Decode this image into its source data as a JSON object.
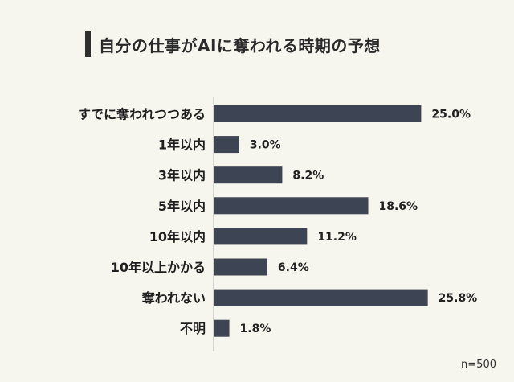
{
  "chart_data": {
    "type": "bar",
    "orientation": "horizontal",
    "title": "自分の仕事がAIに奪われる時期の予想",
    "categories": [
      "すでに奪われつつある",
      "1年以内",
      "3年以内",
      "5年以内",
      "10年以内",
      "10年以上かかる",
      "奪われない",
      "不明"
    ],
    "values": [
      25.0,
      3.0,
      8.2,
      18.6,
      11.2,
      6.4,
      25.8,
      1.8
    ],
    "value_labels": [
      "25.0%",
      "3.0%",
      "8.2%",
      "18.6%",
      "11.2%",
      "6.4%",
      "25.8%",
      "1.8%"
    ],
    "xlim": [
      0,
      27
    ],
    "grid": false,
    "legend": "none",
    "note": "n=500",
    "bar_color": "#3d4453"
  }
}
